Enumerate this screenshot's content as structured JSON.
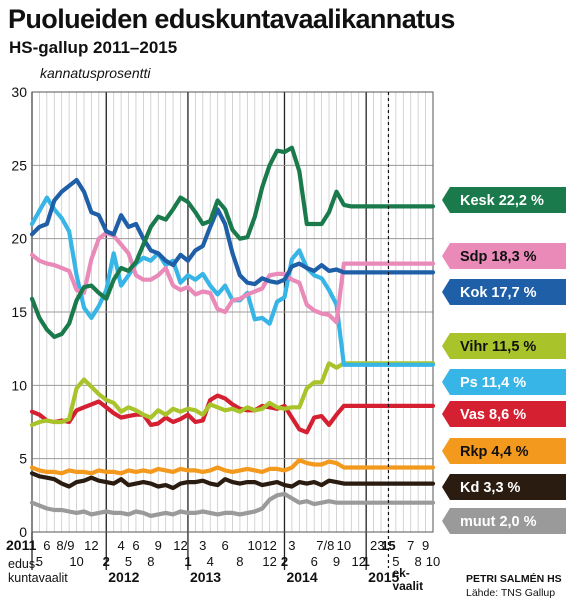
{
  "header": {
    "title": "Puolueiden eduskuntavaalikannatus",
    "subtitle": "HS-gallup 2011–2015"
  },
  "credit": {
    "author": "PETRI SALMÉN HS",
    "source": "Lähde: TNS Gallup"
  },
  "chart_data": {
    "type": "line",
    "ylabel": "kannatusprosentti",
    "ylim": [
      0,
      30
    ],
    "yticks": [
      0,
      5,
      10,
      15,
      20,
      25,
      30
    ],
    "grid": true,
    "legend": "right",
    "x_months": [
      "2011-04",
      "2011-05",
      "2011-06",
      "2011-07",
      "2011-08",
      "2011-09",
      "2011-10",
      "2011-11",
      "2011-12",
      "2012-01",
      "2012-02",
      "2012-03",
      "2012-04",
      "2012-05",
      "2012-06",
      "2012-07",
      "2012-08",
      "2012-09",
      "2012-10",
      "2012-11",
      "2012-12",
      "2013-01",
      "2013-02",
      "2013-03",
      "2013-04",
      "2013-05",
      "2013-06",
      "2013-07",
      "2013-08",
      "2013-09",
      "2013-10",
      "2013-11",
      "2013-12",
      "2014-01",
      "2014-02",
      "2014-03",
      "2014-04",
      "2014-05",
      "2014-06",
      "2014-07",
      "2014-08",
      "2014-09",
      "2014-10",
      "2014-11",
      "2014-12",
      "2015-01",
      "2015-02",
      "2015-03",
      "2015-04",
      "2015-05",
      "2015-06",
      "2015-07",
      "2015-08",
      "2015-09",
      "2015-10"
    ],
    "election": "2015-04",
    "election_label": [
      "ek-",
      "vaalit"
    ],
    "x_tick_labels": [
      {
        "text": "2011",
        "month": "2011-04",
        "row": 1,
        "bold": true
      },
      {
        "text": "6",
        "month": "2011-06",
        "row": 1
      },
      {
        "text": "8/9",
        "month": "2011-08.5",
        "row": 1
      },
      {
        "text": "12",
        "month": "2011-12",
        "row": 1
      },
      {
        "text": "4",
        "month": "2012-04",
        "row": 1
      },
      {
        "text": "6",
        "month": "2012-06",
        "row": 1
      },
      {
        "text": "9",
        "month": "2012-09",
        "row": 1
      },
      {
        "text": "12",
        "month": "2012-12",
        "row": 1
      },
      {
        "text": "3",
        "month": "2013-03",
        "row": 1
      },
      {
        "text": "6",
        "month": "2013-06",
        "row": 1
      },
      {
        "text": "10",
        "month": "2013-10",
        "row": 1
      },
      {
        "text": "12",
        "month": "2013-12",
        "row": 1
      },
      {
        "text": "3",
        "month": "2014-03",
        "row": 1
      },
      {
        "text": "7/8",
        "month": "2014-07.5",
        "row": 1
      },
      {
        "text": "10",
        "month": "2014-10",
        "row": 1
      },
      {
        "text": "2",
        "month": "2015-02",
        "row": 1
      },
      {
        "text": "3",
        "month": "2015-03",
        "row": 1
      },
      {
        "text": "15",
        "month": "2015-04",
        "row": 1,
        "bold": true
      },
      {
        "text": "7",
        "month": "2015-07",
        "row": 1
      },
      {
        "text": "9",
        "month": "2015-09",
        "row": 1
      },
      {
        "text": "5",
        "month": "2011-05",
        "row": 2
      },
      {
        "text": "10",
        "month": "2011-10",
        "row": 2
      },
      {
        "text": "2",
        "month": "2012-02",
        "row": 2,
        "bold": true
      },
      {
        "text": "5",
        "month": "2012-05",
        "row": 2
      },
      {
        "text": "8",
        "month": "2012-08",
        "row": 2
      },
      {
        "text": "1",
        "month": "2013-01",
        "row": 2,
        "bold": true
      },
      {
        "text": "4",
        "month": "2013-04",
        "row": 2
      },
      {
        "text": "8",
        "month": "2013-08",
        "row": 2
      },
      {
        "text": "12",
        "month": "2013-12",
        "row": 2
      },
      {
        "text": "2",
        "month": "2014-02",
        "row": 2,
        "bold": true
      },
      {
        "text": "6",
        "month": "2014-06",
        "row": 2
      },
      {
        "text": "9",
        "month": "2014-09",
        "row": 2
      },
      {
        "text": "12",
        "month": "2014-12",
        "row": 2
      },
      {
        "text": "1",
        "month": "2015-01",
        "row": 2,
        "bold": true
      },
      {
        "text": "5",
        "month": "2015-05",
        "row": 2
      },
      {
        "text": "8",
        "month": "2015-08",
        "row": 2
      },
      {
        "text": "10",
        "month": "2015-10",
        "row": 2
      }
    ],
    "year_labels": [
      {
        "text": "2011",
        "month": "2011-04"
      },
      {
        "text": "2012",
        "month": "2012-02"
      },
      {
        "text": "2013",
        "month": "2013-01"
      },
      {
        "text": "2014",
        "month": "2014-02"
      },
      {
        "text": "2015",
        "month": "2015-01"
      }
    ],
    "election_2011_label": [
      "edus-",
      "kuntavaalit"
    ],
    "series": [
      {
        "name": "Kesk",
        "label": "Kesk 22,2 %",
        "color": "#1a7a4c",
        "values": [
          15.9,
          14.6,
          13.8,
          13.3,
          13.5,
          14.2,
          15.8,
          16.7,
          16.8,
          16.3,
          15.9,
          17.2,
          18.0,
          17.8,
          18.4,
          19.6,
          20.8,
          21.5,
          21.3,
          22.0,
          22.8,
          22.5,
          21.8,
          21.0,
          21.2,
          22.6,
          22.0,
          20.6,
          20.0,
          20.1,
          21.5,
          23.5,
          25.0,
          26.0,
          25.9,
          26.2,
          24.6,
          21.0,
          21.0,
          21.0,
          21.8,
          23.2,
          22.3,
          22.2,
          22.2,
          22.2,
          22.2,
          22.2,
          22.2,
          22.2,
          22.2,
          22.2,
          22.2,
          22.2,
          22.2
        ]
      },
      {
        "name": "Sdp",
        "label": "Sdp 18,3 %",
        "color": "#e98ab8",
        "values": [
          18.9,
          18.5,
          18.3,
          18.2,
          18.0,
          17.8,
          16.5,
          16.3,
          18.6,
          20.0,
          20.4,
          20.2,
          19.6,
          19.0,
          17.5,
          17.2,
          17.2,
          17.5,
          18.0,
          16.8,
          16.5,
          16.7,
          16.2,
          16.4,
          16.3,
          15.2,
          15.0,
          15.8,
          15.9,
          16.2,
          16.4,
          16.6,
          17.5,
          17.6,
          17.6,
          17.2,
          17.0,
          15.5,
          15.1,
          14.9,
          14.8,
          14.3,
          18.3,
          18.3,
          18.3,
          18.3,
          18.3,
          18.3,
          18.3,
          18.3,
          18.3,
          18.3,
          18.3,
          18.3,
          18.3
        ]
      },
      {
        "name": "Kok",
        "label": "Kok 17,7 %",
        "color": "#1f5fa8",
        "values": [
          20.3,
          20.8,
          21.0,
          22.6,
          23.2,
          23.6,
          24.0,
          23.2,
          21.8,
          21.6,
          20.5,
          20.3,
          21.6,
          20.8,
          21.0,
          20.0,
          19.2,
          19.0,
          18.5,
          18.2,
          18.9,
          18.5,
          19.2,
          19.5,
          20.8,
          22.0,
          21.0,
          19.0,
          17.5,
          17.0,
          16.9,
          17.3,
          17.1,
          17.0,
          17.2,
          18.1,
          18.3,
          18.0,
          17.8,
          18.2,
          17.8,
          17.9,
          17.7,
          17.7,
          17.7,
          17.7,
          17.7,
          17.7,
          17.7,
          17.7,
          17.7,
          17.7,
          17.7,
          17.7,
          17.7
        ]
      },
      {
        "name": "Vihr",
        "label": "Vihr 11,5 %",
        "color": "#a8c42a",
        "values": [
          7.3,
          7.5,
          7.6,
          7.5,
          7.5,
          7.7,
          9.8,
          10.4,
          9.9,
          9.4,
          9.0,
          8.8,
          8.2,
          8.5,
          8.3,
          8.0,
          7.8,
          8.3,
          8.0,
          8.4,
          8.2,
          8.4,
          8.3,
          8.0,
          8.7,
          8.5,
          8.3,
          8.4,
          8.2,
          8.5,
          8.3,
          8.4,
          8.8,
          8.5,
          8.4,
          8.5,
          8.5,
          9.8,
          10.2,
          10.2,
          11.5,
          11.2,
          11.5,
          11.5,
          11.5,
          11.5,
          11.5,
          11.5,
          11.5,
          11.5,
          11.5,
          11.5,
          11.5,
          11.5,
          11.5
        ]
      },
      {
        "name": "Ps",
        "label": "Ps 11,4 %",
        "color": "#37b5e6",
        "values": [
          21.0,
          21.9,
          22.8,
          22.0,
          21.4,
          20.5,
          17.5,
          15.3,
          14.6,
          15.4,
          16.5,
          19.0,
          16.8,
          17.5,
          18.3,
          18.7,
          18.5,
          19.0,
          18.2,
          18.5,
          17.0,
          17.5,
          17.2,
          17.6,
          16.8,
          16.2,
          16.8,
          15.8,
          15.8,
          16.3,
          14.5,
          14.6,
          14.2,
          15.7,
          16.0,
          18.6,
          19.2,
          18.0,
          17.5,
          17.3,
          16.5,
          15.5,
          11.4,
          11.4,
          11.4,
          11.4,
          11.4,
          11.4,
          11.4,
          11.4,
          11.4,
          11.4,
          11.4,
          11.4,
          11.4
        ]
      },
      {
        "name": "Vas",
        "label": "Vas 8,6 %",
        "color": "#d42030",
        "values": [
          8.2,
          8.0,
          7.6,
          7.5,
          7.6,
          7.5,
          8.3,
          8.5,
          8.7,
          8.9,
          8.5,
          8.1,
          7.8,
          7.9,
          8.0,
          8.0,
          7.3,
          7.4,
          7.8,
          7.5,
          7.7,
          8.0,
          7.5,
          7.6,
          9.0,
          9.3,
          9.1,
          8.7,
          8.4,
          8.3,
          8.3,
          8.6,
          8.5,
          8.4,
          8.6,
          7.8,
          7.0,
          6.8,
          7.8,
          7.9,
          7.3,
          8.0,
          8.6,
          8.6,
          8.6,
          8.6,
          8.6,
          8.6,
          8.6,
          8.6,
          8.6,
          8.6,
          8.6,
          8.6,
          8.6
        ]
      },
      {
        "name": "Rkp",
        "label": "Rkp 4,4 %",
        "color": "#f39a1e",
        "values": [
          4.4,
          4.2,
          4.1,
          4.1,
          4.0,
          4.2,
          4.1,
          4.1,
          4.0,
          4.2,
          4.1,
          4.1,
          4.0,
          4.2,
          4.1,
          4.2,
          4.1,
          4.3,
          4.2,
          4.1,
          4.3,
          4.2,
          4.2,
          4.1,
          4.2,
          4.4,
          4.2,
          4.1,
          4.2,
          4.3,
          4.2,
          4.1,
          4.3,
          4.3,
          4.2,
          4.4,
          4.9,
          4.7,
          4.6,
          4.6,
          4.8,
          4.7,
          4.4,
          4.4,
          4.4,
          4.4,
          4.4,
          4.4,
          4.4,
          4.4,
          4.4,
          4.4,
          4.4,
          4.4,
          4.4
        ]
      },
      {
        "name": "Kd",
        "label": "Kd 3,3 %",
        "color": "#2a1c10",
        "values": [
          4.0,
          3.8,
          3.7,
          3.6,
          3.3,
          3.1,
          3.4,
          3.5,
          3.7,
          3.5,
          3.4,
          3.3,
          3.6,
          3.2,
          3.3,
          3.4,
          3.3,
          3.1,
          3.2,
          3.0,
          3.3,
          3.4,
          3.4,
          3.5,
          3.3,
          3.2,
          3.6,
          3.4,
          3.3,
          3.4,
          3.4,
          3.2,
          3.3,
          3.4,
          3.2,
          3.1,
          3.4,
          3.3,
          3.4,
          3.2,
          3.5,
          3.4,
          3.3,
          3.3,
          3.3,
          3.3,
          3.3,
          3.3,
          3.3,
          3.3,
          3.3,
          3.3,
          3.3,
          3.3,
          3.3
        ]
      },
      {
        "name": "muut",
        "label": "muut 2,0 %",
        "color": "#9a9a9a",
        "values": [
          2.0,
          1.8,
          1.6,
          1.5,
          1.5,
          1.4,
          1.3,
          1.4,
          1.2,
          1.3,
          1.4,
          1.3,
          1.3,
          1.2,
          1.4,
          1.3,
          1.1,
          1.2,
          1.3,
          1.2,
          1.4,
          1.3,
          1.3,
          1.4,
          1.3,
          1.2,
          1.3,
          1.3,
          1.2,
          1.3,
          1.4,
          1.6,
          2.2,
          2.5,
          2.6,
          2.3,
          2.0,
          2.1,
          1.9,
          2.0,
          2.1,
          2.0,
          2.0,
          2.0,
          2.0,
          2.0,
          2.0,
          2.0,
          2.0,
          2.0,
          2.0,
          2.0,
          2.0,
          2.0,
          2.0
        ]
      }
    ]
  }
}
